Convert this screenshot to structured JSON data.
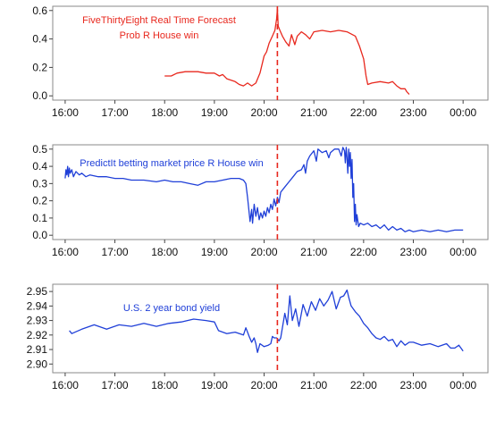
{
  "chart_data": [
    {
      "type": "line",
      "annotation_lines": [
        "FiveThirtyEight Real Time Forecast",
        "Prob R House win"
      ],
      "annotation_color": "#e8281e",
      "line_color": "#e8281e",
      "vline_x": "20:16",
      "vline_color": "#e8281e",
      "x_ticks": [
        "16:00",
        "17:00",
        "18:00",
        "19:00",
        "20:00",
        "21:00",
        "22:00",
        "23:00",
        "00:00"
      ],
      "y_ticks": [
        "0.0",
        "0.2",
        "0.4",
        "0.6"
      ],
      "ylim": [
        -0.03,
        0.63
      ],
      "points": [
        [
          "18:00",
          0.14
        ],
        [
          "18:08",
          0.14
        ],
        [
          "18:15",
          0.16
        ],
        [
          "18:25",
          0.17
        ],
        [
          "18:40",
          0.17
        ],
        [
          "18:50",
          0.16
        ],
        [
          "19:00",
          0.16
        ],
        [
          "19:06",
          0.14
        ],
        [
          "19:10",
          0.15
        ],
        [
          "19:15",
          0.12
        ],
        [
          "19:25",
          0.1
        ],
        [
          "19:30",
          0.08
        ],
        [
          "19:35",
          0.07
        ],
        [
          "19:40",
          0.09
        ],
        [
          "19:45",
          0.07
        ],
        [
          "19:50",
          0.09
        ],
        [
          "19:55",
          0.16
        ],
        [
          "20:00",
          0.28
        ],
        [
          "20:03",
          0.31
        ],
        [
          "20:06",
          0.37
        ],
        [
          "20:10",
          0.42
        ],
        [
          "20:13",
          0.46
        ],
        [
          "20:15",
          0.54
        ],
        [
          "20:16",
          0.61
        ],
        [
          "20:17",
          0.49
        ],
        [
          "20:19",
          0.46
        ],
        [
          "20:22",
          0.42
        ],
        [
          "20:26",
          0.38
        ],
        [
          "20:30",
          0.35
        ],
        [
          "20:33",
          0.43
        ],
        [
          "20:37",
          0.36
        ],
        [
          "20:40",
          0.42
        ],
        [
          "20:45",
          0.45
        ],
        [
          "20:50",
          0.43
        ],
        [
          "20:55",
          0.4
        ],
        [
          "21:00",
          0.45
        ],
        [
          "21:10",
          0.46
        ],
        [
          "21:20",
          0.45
        ],
        [
          "21:30",
          0.46
        ],
        [
          "21:40",
          0.45
        ],
        [
          "21:50",
          0.42
        ],
        [
          "21:55",
          0.35
        ],
        [
          "22:00",
          0.26
        ],
        [
          "22:03",
          0.14
        ],
        [
          "22:05",
          0.08
        ],
        [
          "22:10",
          0.09
        ],
        [
          "22:20",
          0.1
        ],
        [
          "22:30",
          0.09
        ],
        [
          "22:35",
          0.1
        ],
        [
          "22:40",
          0.07
        ],
        [
          "22:45",
          0.05
        ],
        [
          "22:50",
          0.05
        ],
        [
          "22:52",
          0.03
        ],
        [
          "22:55",
          0.01
        ]
      ]
    },
    {
      "type": "line",
      "annotation_lines": [
        "PredictIt betting market price R House win"
      ],
      "annotation_color": "#1f3fd8",
      "line_color": "#1f3fd8",
      "vline_x": "20:16",
      "vline_color": "#e8281e",
      "x_ticks": [
        "16:00",
        "17:00",
        "18:00",
        "19:00",
        "20:00",
        "21:00",
        "22:00",
        "23:00",
        "00:00"
      ],
      "y_ticks": [
        "0.0",
        "0.1",
        "0.2",
        "0.3",
        "0.4",
        "0.5"
      ],
      "ylim": [
        -0.025,
        0.525
      ],
      "points": [
        [
          "16:00",
          0.33
        ],
        [
          "16:01",
          0.38
        ],
        [
          "16:02",
          0.35
        ],
        [
          "16:03",
          0.4
        ],
        [
          "16:04",
          0.34
        ],
        [
          "16:05",
          0.39
        ],
        [
          "16:06",
          0.36
        ],
        [
          "16:08",
          0.38
        ],
        [
          "16:10",
          0.34
        ],
        [
          "16:13",
          0.37
        ],
        [
          "16:17",
          0.35
        ],
        [
          "16:20",
          0.36
        ],
        [
          "16:25",
          0.34
        ],
        [
          "16:30",
          0.35
        ],
        [
          "16:40",
          0.34
        ],
        [
          "16:50",
          0.34
        ],
        [
          "17:00",
          0.33
        ],
        [
          "17:10",
          0.33
        ],
        [
          "17:20",
          0.32
        ],
        [
          "17:35",
          0.32
        ],
        [
          "17:50",
          0.31
        ],
        [
          "18:00",
          0.32
        ],
        [
          "18:10",
          0.31
        ],
        [
          "18:20",
          0.31
        ],
        [
          "18:30",
          0.3
        ],
        [
          "18:40",
          0.29
        ],
        [
          "18:50",
          0.31
        ],
        [
          "19:00",
          0.31
        ],
        [
          "19:10",
          0.32
        ],
        [
          "19:20",
          0.33
        ],
        [
          "19:30",
          0.33
        ],
        [
          "19:35",
          0.32
        ],
        [
          "19:38",
          0.3
        ],
        [
          "19:40",
          0.22
        ],
        [
          "19:42",
          0.13
        ],
        [
          "19:43",
          0.08
        ],
        [
          "19:45",
          0.15
        ],
        [
          "19:46",
          0.07
        ],
        [
          "19:48",
          0.18
        ],
        [
          "19:50",
          0.11
        ],
        [
          "19:52",
          0.16
        ],
        [
          "19:54",
          0.09
        ],
        [
          "19:56",
          0.13
        ],
        [
          "19:58",
          0.1
        ],
        [
          "20:00",
          0.14
        ],
        [
          "20:02",
          0.11
        ],
        [
          "20:04",
          0.16
        ],
        [
          "20:06",
          0.13
        ],
        [
          "20:08",
          0.18
        ],
        [
          "20:10",
          0.15
        ],
        [
          "20:12",
          0.21
        ],
        [
          "20:14",
          0.17
        ],
        [
          "20:16",
          0.22
        ],
        [
          "20:18",
          0.19
        ],
        [
          "20:20",
          0.25
        ],
        [
          "20:25",
          0.28
        ],
        [
          "20:30",
          0.31
        ],
        [
          "20:35",
          0.34
        ],
        [
          "20:40",
          0.37
        ],
        [
          "20:45",
          0.38
        ],
        [
          "20:48",
          0.41
        ],
        [
          "20:50",
          0.36
        ],
        [
          "20:52",
          0.43
        ],
        [
          "20:55",
          0.46
        ],
        [
          "21:00",
          0.49
        ],
        [
          "21:03",
          0.43
        ],
        [
          "21:05",
          0.5
        ],
        [
          "21:10",
          0.48
        ],
        [
          "21:15",
          0.49
        ],
        [
          "21:18",
          0.45
        ],
        [
          "21:20",
          0.48
        ],
        [
          "21:25",
          0.5
        ],
        [
          "21:30",
          0.5
        ],
        [
          "21:33",
          0.46
        ],
        [
          "21:35",
          0.51
        ],
        [
          "21:37",
          0.49
        ],
        [
          "21:38",
          0.42
        ],
        [
          "21:39",
          0.51
        ],
        [
          "21:40",
          0.45
        ],
        [
          "21:41",
          0.36
        ],
        [
          "21:42",
          0.5
        ],
        [
          "21:43",
          0.4
        ],
        [
          "21:44",
          0.48
        ],
        [
          "21:45",
          0.33
        ],
        [
          "21:46",
          0.44
        ],
        [
          "21:47",
          0.22
        ],
        [
          "21:48",
          0.3
        ],
        [
          "21:49",
          0.08
        ],
        [
          "21:50",
          0.18
        ],
        [
          "21:51",
          0.06
        ],
        [
          "21:52",
          0.12
        ],
        [
          "21:54",
          0.05
        ],
        [
          "21:56",
          0.07
        ],
        [
          "22:00",
          0.06
        ],
        [
          "22:05",
          0.07
        ],
        [
          "22:10",
          0.05
        ],
        [
          "22:15",
          0.06
        ],
        [
          "22:20",
          0.04
        ],
        [
          "22:25",
          0.06
        ],
        [
          "22:30",
          0.03
        ],
        [
          "22:35",
          0.05
        ],
        [
          "22:40",
          0.03
        ],
        [
          "22:45",
          0.04
        ],
        [
          "22:50",
          0.02
        ],
        [
          "22:55",
          0.03
        ],
        [
          "23:00",
          0.02
        ],
        [
          "23:10",
          0.03
        ],
        [
          "23:20",
          0.02
        ],
        [
          "23:30",
          0.03
        ],
        [
          "23:40",
          0.02
        ],
        [
          "23:50",
          0.03
        ],
        [
          "00:00",
          0.03
        ]
      ]
    },
    {
      "type": "line",
      "annotation_lines": [
        "U.S. 2 year bond yield"
      ],
      "annotation_color": "#1f3fd8",
      "line_color": "#1f3fd8",
      "vline_x": "20:16",
      "vline_color": "#e8281e",
      "x_ticks": [
        "16:00",
        "17:00",
        "18:00",
        "19:00",
        "20:00",
        "21:00",
        "22:00",
        "23:00",
        "00:00"
      ],
      "y_ticks": [
        "2.90",
        "2.91",
        "2.92",
        "2.93",
        "2.94",
        "2.95"
      ],
      "ylim": [
        2.894,
        2.955
      ],
      "points": [
        [
          "16:05",
          2.923
        ],
        [
          "16:08",
          2.921
        ],
        [
          "16:20",
          2.924
        ],
        [
          "16:35",
          2.927
        ],
        [
          "16:50",
          2.924
        ],
        [
          "17:05",
          2.927
        ],
        [
          "17:20",
          2.926
        ],
        [
          "17:35",
          2.928
        ],
        [
          "17:50",
          2.926
        ],
        [
          "18:05",
          2.928
        ],
        [
          "18:20",
          2.929
        ],
        [
          "18:35",
          2.931
        ],
        [
          "18:50",
          2.93
        ],
        [
          "19:00",
          2.929
        ],
        [
          "19:05",
          2.923
        ],
        [
          "19:15",
          2.921
        ],
        [
          "19:25",
          2.922
        ],
        [
          "19:35",
          2.92
        ],
        [
          "19:38",
          2.925
        ],
        [
          "19:42",
          2.919
        ],
        [
          "19:45",
          2.915
        ],
        [
          "19:48",
          2.918
        ],
        [
          "19:50",
          2.914
        ],
        [
          "19:52",
          2.908
        ],
        [
          "19:55",
          2.914
        ],
        [
          "20:00",
          2.912
        ],
        [
          "20:05",
          2.913
        ],
        [
          "20:08",
          2.914
        ],
        [
          "20:10",
          2.919
        ],
        [
          "20:12",
          2.918
        ],
        [
          "20:15",
          2.918
        ],
        [
          "20:18",
          2.916
        ],
        [
          "20:20",
          2.918
        ],
        [
          "20:25",
          2.935
        ],
        [
          "20:28",
          2.927
        ],
        [
          "20:31",
          2.947
        ],
        [
          "20:34",
          2.93
        ],
        [
          "20:38",
          2.938
        ],
        [
          "20:42",
          2.926
        ],
        [
          "20:47",
          2.941
        ],
        [
          "20:52",
          2.933
        ],
        [
          "20:57",
          2.943
        ],
        [
          "21:02",
          2.937
        ],
        [
          "21:07",
          2.945
        ],
        [
          "21:12",
          2.94
        ],
        [
          "21:17",
          2.944
        ],
        [
          "21:22",
          2.95
        ],
        [
          "21:27",
          2.938
        ],
        [
          "21:32",
          2.946
        ],
        [
          "21:36",
          2.947
        ],
        [
          "21:40",
          2.951
        ],
        [
          "21:42",
          2.946
        ],
        [
          "21:45",
          2.94
        ],
        [
          "21:50",
          2.936
        ],
        [
          "21:55",
          2.933
        ],
        [
          "22:00",
          2.928
        ],
        [
          "22:05",
          2.925
        ],
        [
          "22:10",
          2.921
        ],
        [
          "22:15",
          2.918
        ],
        [
          "22:20",
          2.917
        ],
        [
          "22:25",
          2.919
        ],
        [
          "22:30",
          2.916
        ],
        [
          "22:35",
          2.917
        ],
        [
          "22:40",
          2.912
        ],
        [
          "22:45",
          2.916
        ],
        [
          "22:50",
          2.913
        ],
        [
          "22:55",
          2.915
        ],
        [
          "23:00",
          2.915
        ],
        [
          "23:10",
          2.913
        ],
        [
          "23:20",
          2.914
        ],
        [
          "23:30",
          2.912
        ],
        [
          "23:40",
          2.914
        ],
        [
          "23:45",
          2.911
        ],
        [
          "23:50",
          2.911
        ],
        [
          "23:55",
          2.913
        ],
        [
          "00:00",
          2.909
        ]
      ]
    }
  ]
}
